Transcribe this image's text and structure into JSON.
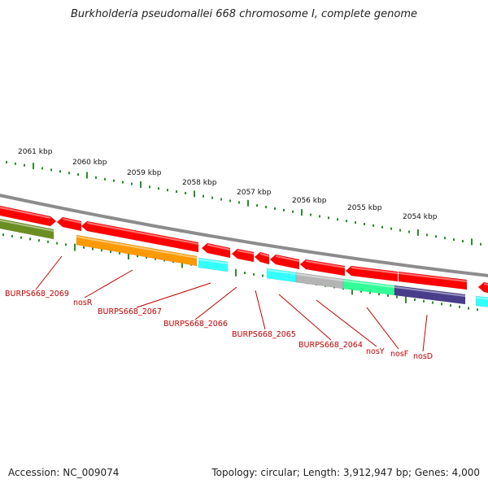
{
  "title": "Burkholderia pseudomallei 668 chromosome I, complete genome",
  "footer": {
    "accession": "Accession: NC_009074",
    "summary": "Topology: circular; Length: 3,912,947 bp; Genes: 4,000"
  },
  "colors": {
    "backbone": "#8c8c8c",
    "tick": "#2e8b2e",
    "label": "#c00000",
    "red": "#ff0000",
    "olive": "#6b8e23",
    "orange": "#ff9900",
    "cyan": "#33ffff",
    "gray": "#b4b4b4",
    "green": "#33ff99",
    "navy": "#483d8b"
  },
  "kbp_labels": [
    "2061 kbp",
    "2060 kbp",
    "2059 kbp",
    "2058 kbp",
    "2057 kbp",
    "2056 kbp",
    "2055 kbp",
    "2054 kbp"
  ],
  "gene_labels": [
    "BURPS668_2069",
    "nosR",
    "BURPS668_2067",
    "BURPS668_2066",
    "BURPS668_2065",
    "BURPS668_2064",
    "nosY",
    "nosF",
    "nosD"
  ]
}
